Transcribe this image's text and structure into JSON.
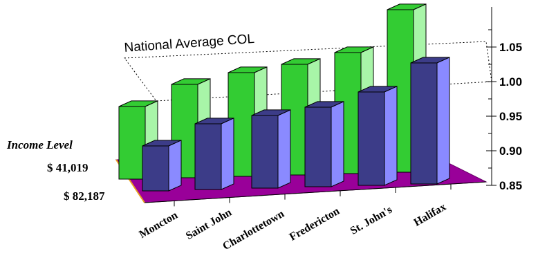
{
  "chart_data": {
    "type": "bar",
    "subtype": "3d-grouped-bar",
    "categories": [
      "Moncton",
      "Saint John",
      "Charlottetown",
      "Fredericton",
      "St. John's",
      "Halifax"
    ],
    "depth_axis_title": "Income Level",
    "series": [
      {
        "name": "$ 41,019",
        "values": [
          0.955,
          0.985,
          1.0,
          1.01,
          1.025,
          1.085
        ],
        "color": "#33cc33",
        "color_light": "#a8f5a8"
      },
      {
        "name": "$ 82,187",
        "values": [
          0.915,
          0.945,
          0.955,
          0.965,
          0.985,
          1.025
        ],
        "color": "#3c3c88",
        "color_light": "#8a8aff"
      }
    ],
    "reference_line": {
      "label": "National Average COL",
      "value": 1.0
    },
    "yaxis": {
      "ylim": [
        0.85,
        1.1
      ],
      "ticks": [
        "0.85",
        "0.90",
        "0.95",
        "1.00",
        "1.05"
      ],
      "tick_values": [
        0.85,
        0.9,
        0.95,
        1.0,
        1.05
      ]
    },
    "floor_color": "#990099"
  }
}
